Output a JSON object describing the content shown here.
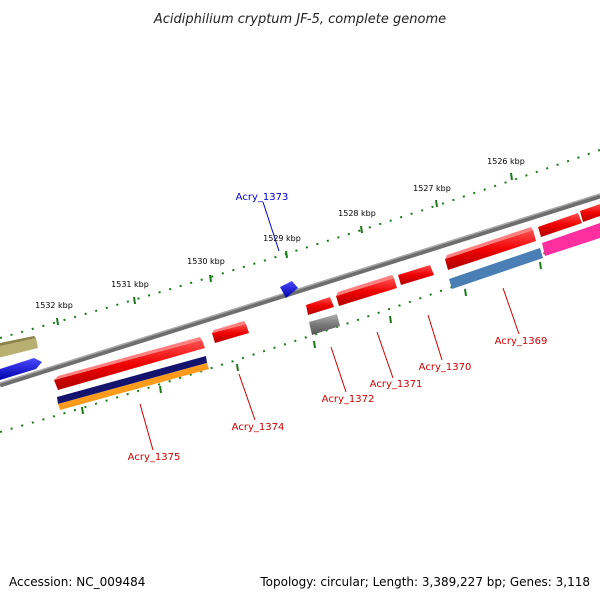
{
  "title": "Acidiphilium cryptum JF-5, complete genome",
  "footer": {
    "accession": "Accession: NC_009484",
    "topology": "Topology: circular; Length: 3,389,227 bp; Genes: 3,118"
  },
  "scale_labels": [
    "1526 kbp",
    "1527 kbp",
    "1528 kbp",
    "1529 kbp",
    "1530 kbp",
    "1531 kbp",
    "1532 kbp"
  ],
  "gene_labels": {
    "acry_1369": "Acry_1369",
    "acry_1370": "Acry_1370",
    "acry_1371": "Acry_1371",
    "acry_1372": "Acry_1372",
    "acry_1373": "Acry_1373",
    "acry_1374": "Acry_1374",
    "acry_1375": "Acry_1375"
  },
  "colors": {
    "forward_gene": "#ff1a1a",
    "reverse_gene": "#1a1aff",
    "backbone": "#808080",
    "tick": "#1a7a1a",
    "label_red": "#cc0000",
    "label_blue": "#0000cc"
  }
}
